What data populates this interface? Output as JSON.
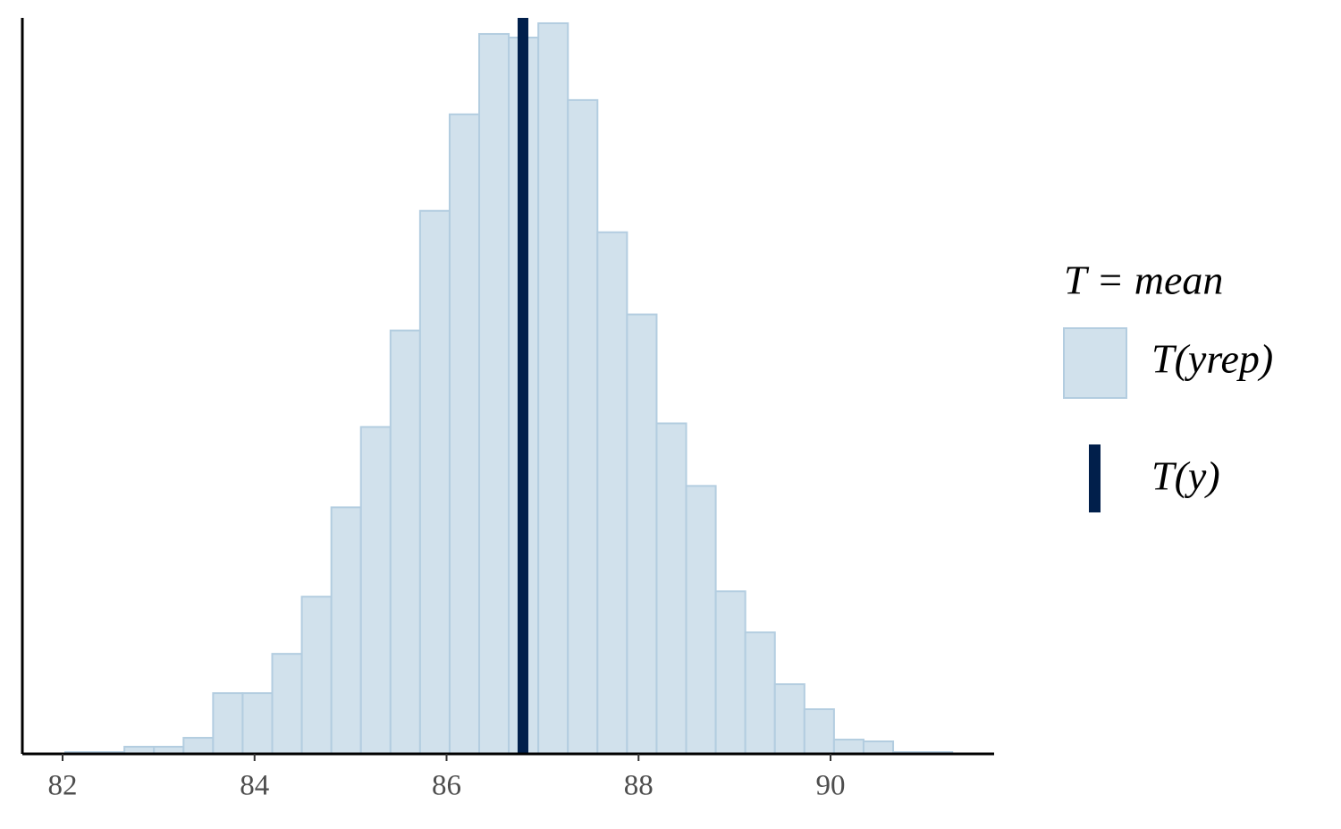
{
  "chart_data": {
    "type": "histogram",
    "bins": [
      82.028,
      82.336,
      82.644,
      82.952,
      83.26,
      83.568,
      83.876,
      84.184,
      84.492,
      84.8,
      85.108,
      85.416,
      85.724,
      86.032,
      86.34,
      86.648,
      86.956,
      87.264,
      87.572,
      87.88,
      88.188,
      88.496,
      88.804,
      89.112,
      89.42,
      89.728,
      90.036,
      90.344,
      90.652,
      90.96,
      91.268
    ],
    "values": [
      1,
      1,
      4,
      4,
      9,
      34,
      34,
      56,
      88,
      138,
      183,
      237,
      304,
      358,
      403,
      401,
      409,
      366,
      292,
      246,
      185,
      150,
      91,
      68,
      39,
      25,
      8,
      7,
      1,
      1
    ],
    "name": "T(yrep)",
    "color": "#d1e1ec",
    "edge_color": "#b3cde0",
    "observed": {
      "name": "T(y)",
      "value": 86.796,
      "color": "#011f4b"
    },
    "legend_title": "T = mean",
    "xlim": [
      81.581,
      91.704
    ],
    "ylim": [
      0,
      412
    ],
    "xticks": [
      82,
      84,
      86,
      88,
      90
    ],
    "grid": false
  }
}
